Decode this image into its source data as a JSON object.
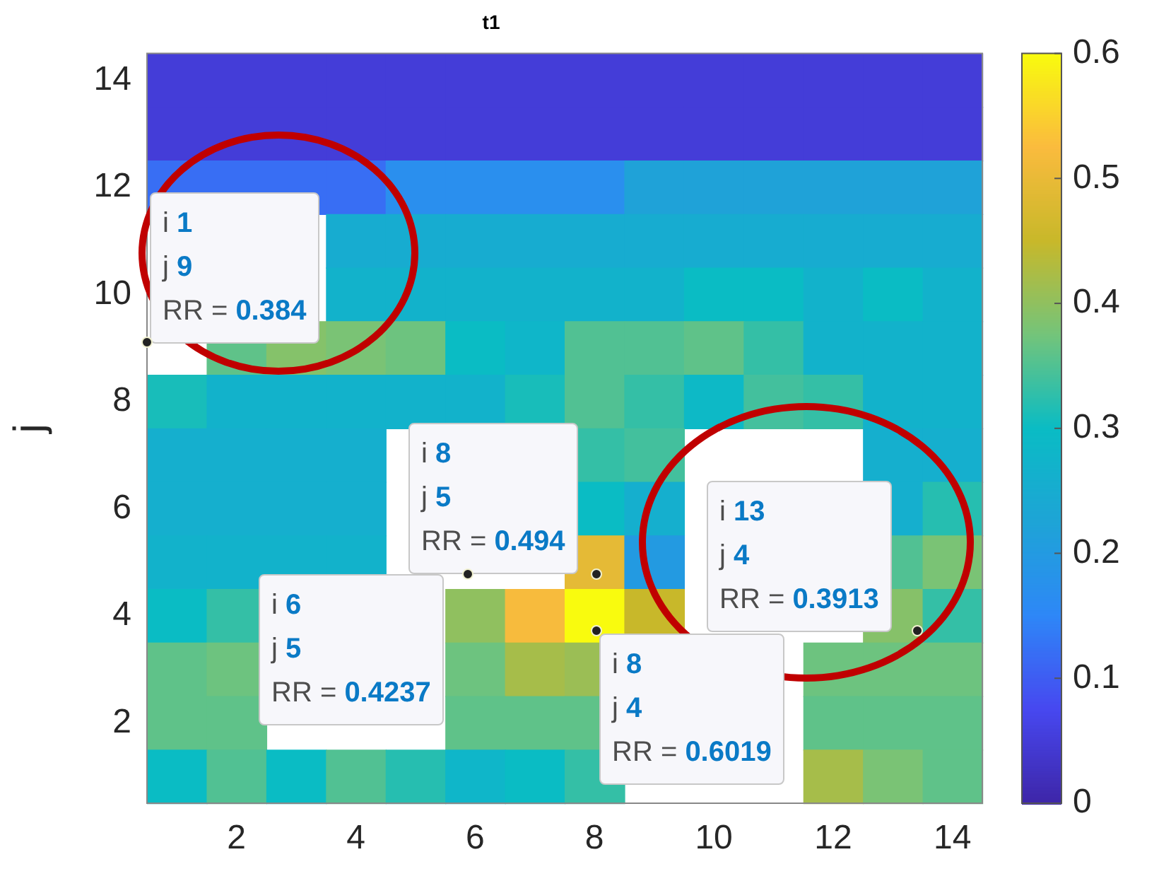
{
  "chart_data": {
    "type": "heatmap",
    "title": "t1",
    "ylabel": "j",
    "categories": [
      null,
      "2",
      null,
      "4",
      null,
      "6",
      null,
      "8",
      null,
      "10",
      null,
      "12",
      null,
      "14"
    ],
    "y_categories": [
      "14",
      null,
      "12",
      null,
      "10",
      null,
      "8",
      null,
      "6",
      null,
      "4",
      null,
      "2",
      null
    ],
    "clim": [
      0,
      0.6
    ],
    "cticks": [
      0,
      0.1,
      0.2,
      0.3,
      0.4,
      0.5,
      0.6
    ],
    "cells": [
      [
        0.05,
        0.05,
        0.05,
        0.05,
        0.05,
        0.05,
        0.05,
        0.05,
        0.05,
        0.05,
        0.05,
        0.05,
        0.05,
        0.05
      ],
      [
        0.05,
        0.05,
        0.05,
        0.05,
        0.05,
        0.05,
        0.05,
        0.05,
        0.05,
        0.05,
        0.05,
        0.05,
        0.05,
        0.05
      ],
      [
        0.12,
        0.12,
        0.12,
        0.12,
        0.17,
        0.17,
        0.17,
        0.17,
        0.22,
        0.22,
        0.22,
        0.22,
        0.22,
        0.22
      ],
      [
        null,
        null,
        null,
        0.25,
        0.25,
        0.25,
        0.25,
        0.25,
        0.25,
        0.25,
        0.25,
        0.25,
        0.25,
        0.25
      ],
      [
        null,
        null,
        null,
        0.27,
        0.27,
        0.27,
        0.27,
        0.27,
        0.27,
        0.3,
        0.3,
        0.27,
        0.3,
        0.27
      ],
      [
        null,
        0.36,
        0.39,
        0.38,
        0.37,
        0.3,
        0.28,
        0.35,
        0.35,
        0.36,
        0.33,
        0.27,
        0.27,
        0.27
      ],
      [
        0.31,
        0.27,
        0.27,
        0.27,
        0.27,
        0.27,
        0.31,
        0.35,
        0.33,
        0.29,
        0.34,
        0.33,
        0.27,
        0.27
      ],
      [
        0.26,
        0.26,
        0.26,
        0.26,
        null,
        null,
        null,
        0.33,
        0.34,
        null,
        null,
        null,
        0.26,
        0.26
      ],
      [
        0.26,
        0.26,
        0.26,
        0.26,
        null,
        null,
        null,
        0.3,
        0.26,
        null,
        null,
        null,
        0.26,
        0.32
      ],
      [
        0.27,
        0.27,
        0.27,
        0.27,
        null,
        null,
        null,
        0.494,
        0.2,
        null,
        null,
        null,
        0.35,
        0.38
      ],
      [
        0.3,
        0.33,
        null,
        null,
        null,
        0.4,
        0.52,
        0.6019,
        0.45,
        null,
        null,
        null,
        0.3913,
        0.33
      ],
      [
        0.36,
        0.37,
        null,
        null,
        null,
        0.37,
        0.42,
        0.41,
        null,
        null,
        null,
        0.37,
        0.37,
        0.37
      ],
      [
        0.36,
        0.36,
        null,
        null,
        null,
        0.36,
        0.36,
        0.36,
        null,
        null,
        null,
        0.36,
        0.36,
        0.36
      ],
      [
        0.3,
        0.35,
        0.3,
        0.35,
        0.32,
        0.28,
        0.3,
        0.33,
        null,
        null,
        null,
        0.42,
        0.38,
        0.36
      ]
    ],
    "annotations": [
      "i 1\nj 9\nRR = 0.384",
      "i 8\nj 5\nRR = 0.494",
      "i 13\nj 4\nRR = 0.3913",
      "i 6\nj 5\nRR = 0.4237",
      "i 8\nj 4\nRR = 0.6019"
    ]
  }
}
